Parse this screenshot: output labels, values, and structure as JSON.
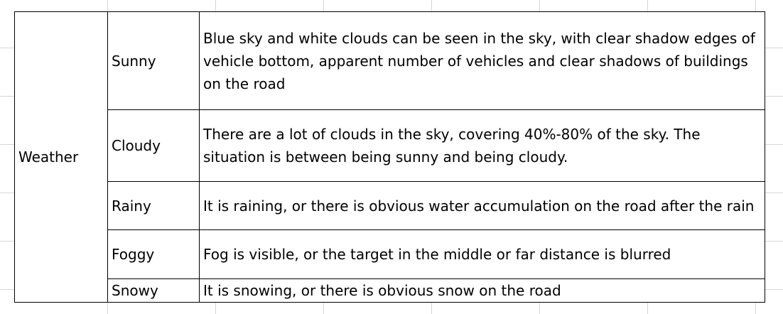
{
  "table": {
    "category": "Weather",
    "rows": [
      {
        "type": "Sunny",
        "description": "Blue sky and white clouds can be seen in the sky, with clear shadow edges of vehicle bottom, apparent number of vehicles and clear shadows of buildings on the road"
      },
      {
        "type": "Cloudy",
        "description": "There are a lot of clouds in the sky, covering 40%-80% of the sky. The situation is between being sunny and being cloudy."
      },
      {
        "type": "Rainy",
        "description": "It is raining, or there is obvious water accumulation on the road after the rain"
      },
      {
        "type": "Foggy",
        "description": "Fog is visible, or the target in the middle or far distance is blurred"
      },
      {
        "type": "Snowy",
        "description": "It is snowing, or there is obvious snow on the road"
      }
    ]
  }
}
